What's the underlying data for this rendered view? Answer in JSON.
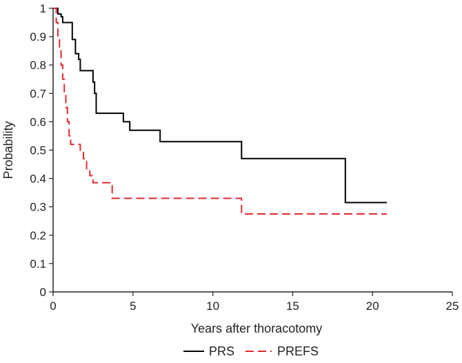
{
  "chart_data": {
    "type": "line",
    "title": "",
    "xlabel": "Years after thoracotomy",
    "ylabel": "Probability",
    "xlim": [
      0,
      25
    ],
    "ylim": [
      0,
      1
    ],
    "x_ticks": [
      0,
      5,
      10,
      15,
      20,
      25
    ],
    "y_ticks": [
      0,
      0.1,
      0.2,
      0.3,
      0.4,
      0.5,
      0.6,
      0.7,
      0.8,
      0.9,
      1
    ],
    "y_tick_labels": [
      "0",
      "0.1",
      "0.2",
      "0.3",
      "0.4",
      "0.5",
      "0.6",
      "0.7",
      "0.8",
      "0.9",
      "1"
    ],
    "grid": false,
    "legend_position": "bottom",
    "series": [
      {
        "name": "PRS",
        "color": "#000000",
        "style": "solid",
        "step_points": [
          [
            0,
            1
          ],
          [
            0.3,
            1
          ],
          [
            0.3,
            0.98
          ],
          [
            0.5,
            0.98
          ],
          [
            0.5,
            0.97
          ],
          [
            0.6,
            0.97
          ],
          [
            0.6,
            0.95
          ],
          [
            1.2,
            0.95
          ],
          [
            1.2,
            0.89
          ],
          [
            1.4,
            0.89
          ],
          [
            1.4,
            0.84
          ],
          [
            1.6,
            0.84
          ],
          [
            1.6,
            0.82
          ],
          [
            1.7,
            0.82
          ],
          [
            1.7,
            0.78
          ],
          [
            2.5,
            0.78
          ],
          [
            2.5,
            0.74
          ],
          [
            2.6,
            0.74
          ],
          [
            2.6,
            0.7
          ],
          [
            2.7,
            0.7
          ],
          [
            2.7,
            0.63
          ],
          [
            4.4,
            0.63
          ],
          [
            4.4,
            0.6
          ],
          [
            4.8,
            0.6
          ],
          [
            4.8,
            0.57
          ],
          [
            6.7,
            0.57
          ],
          [
            6.7,
            0.53
          ],
          [
            11.8,
            0.53
          ],
          [
            11.8,
            0.47
          ],
          [
            18.3,
            0.47
          ],
          [
            18.3,
            0.315
          ],
          [
            20.9,
            0.315
          ]
        ]
      },
      {
        "name": "PREFS",
        "color": "#e0292e",
        "style": "dashed",
        "step_points": [
          [
            0,
            1
          ],
          [
            0.2,
            1
          ],
          [
            0.2,
            0.95
          ],
          [
            0.3,
            0.95
          ],
          [
            0.3,
            0.9
          ],
          [
            0.4,
            0.9
          ],
          [
            0.4,
            0.85
          ],
          [
            0.5,
            0.85
          ],
          [
            0.5,
            0.8
          ],
          [
            0.6,
            0.8
          ],
          [
            0.6,
            0.75
          ],
          [
            0.7,
            0.75
          ],
          [
            0.7,
            0.7
          ],
          [
            0.8,
            0.7
          ],
          [
            0.8,
            0.65
          ],
          [
            0.9,
            0.65
          ],
          [
            0.9,
            0.6
          ],
          [
            1.0,
            0.6
          ],
          [
            1.0,
            0.55
          ],
          [
            1.1,
            0.55
          ],
          [
            1.1,
            0.52
          ],
          [
            1.7,
            0.52
          ],
          [
            1.7,
            0.5
          ],
          [
            1.9,
            0.5
          ],
          [
            1.9,
            0.47
          ],
          [
            2.1,
            0.47
          ],
          [
            2.1,
            0.43
          ],
          [
            2.3,
            0.43
          ],
          [
            2.3,
            0.41
          ],
          [
            2.5,
            0.41
          ],
          [
            2.5,
            0.385
          ],
          [
            3.7,
            0.385
          ],
          [
            3.7,
            0.33
          ],
          [
            11.8,
            0.33
          ],
          [
            11.8,
            0.275
          ],
          [
            20.9,
            0.275
          ]
        ]
      }
    ]
  }
}
